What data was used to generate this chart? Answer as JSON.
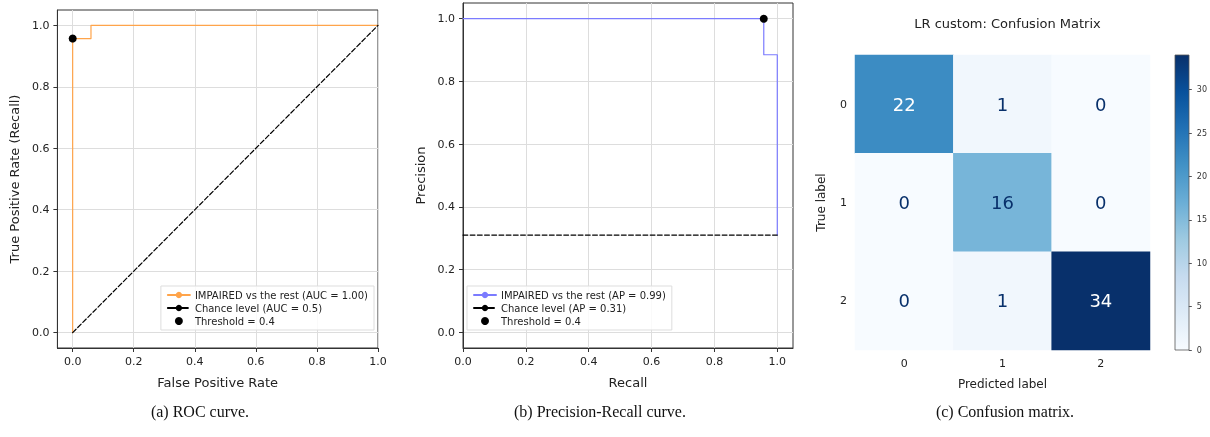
{
  "chart_data": [
    {
      "type": "line",
      "xlabel": "False Positive Rate",
      "ylabel": "True Positive Rate (Recall)",
      "annotations": [
        "(a) ROC curve."
      ],
      "xlim": [
        -0.05,
        1.0
      ],
      "ylim": [
        -0.05,
        1.05
      ],
      "xticks": [
        {
          "value": 0,
          "label": "0.0"
        },
        {
          "value": 0.2,
          "label": "0.2"
        },
        {
          "value": 0.4,
          "label": "0.4"
        },
        {
          "value": 0.6,
          "label": "0.6"
        },
        {
          "value": 0.8,
          "label": "0.8"
        },
        {
          "value": 1,
          "label": "1.0"
        }
      ],
      "yticks": [
        {
          "value": 0,
          "label": "0.0"
        },
        {
          "value": 0.2,
          "label": "0.2"
        },
        {
          "value": 0.4,
          "label": "0.4"
        },
        {
          "value": 0.6,
          "label": "0.6"
        },
        {
          "value": 0.8,
          "label": "0.8"
        },
        {
          "value": 1,
          "label": "1.0"
        }
      ],
      "grid": true,
      "legend": "bottom right",
      "marker": "none",
      "series": [
        {
          "name": "IMPAIRED vs the rest (AUC = 1.00)",
          "type": "line",
          "color": "#ffa44a",
          "line_style": "solid",
          "x": [
            0,
            0,
            0.06,
            0.06,
            1
          ],
          "values": [
            0,
            0.957,
            0.957,
            1,
            1
          ]
        },
        {
          "name": "Chance level (AUC = 0.5)",
          "type": "line",
          "color": "#000000",
          "line_style": "dashed",
          "x": [
            0,
            1
          ],
          "values": [
            0,
            1
          ]
        },
        {
          "name": "Threshold = 0.4",
          "type": "scatter",
          "marker": "circle",
          "color": "#000000",
          "x": [
            0
          ],
          "values": [
            0.957
          ]
        }
      ]
    },
    {
      "type": "line",
      "xlabel": "Recall",
      "ylabel": "Precision",
      "annotations": [
        "(b) Precision-Recall curve."
      ],
      "xlim": [
        0,
        1.05
      ],
      "ylim": [
        -0.05,
        1.05
      ],
      "xticks": [
        {
          "value": 0,
          "label": "0.0"
        },
        {
          "value": 0.2,
          "label": "0.2"
        },
        {
          "value": 0.4,
          "label": "0.4"
        },
        {
          "value": 0.6,
          "label": "0.6"
        },
        {
          "value": 0.8,
          "label": "0.8"
        },
        {
          "value": 1,
          "label": "1.0"
        }
      ],
      "yticks": [
        {
          "value": 0,
          "label": "0.0"
        },
        {
          "value": 0.2,
          "label": "0.2"
        },
        {
          "value": 0.4,
          "label": "0.4"
        },
        {
          "value": 0.6,
          "label": "0.6"
        },
        {
          "value": 0.8,
          "label": "0.8"
        },
        {
          "value": 1,
          "label": "1.0"
        }
      ],
      "grid": true,
      "legend": "bottom left",
      "marker": "none",
      "series": [
        {
          "name": "IMPAIRED vs the rest (AP = 0.99)",
          "type": "line",
          "color": "#7b7bff",
          "line_style": "solid",
          "x": [
            0,
            0.957,
            0.957,
            1,
            1
          ],
          "values": [
            1,
            1,
            0.885,
            0.885,
            0.31
          ]
        },
        {
          "name": "Chance level (AP = 0.31)",
          "type": "line",
          "color": "#000000",
          "line_style": "dashed",
          "x": [
            0,
            1
          ],
          "values": [
            0.31,
            0.31
          ]
        },
        {
          "name": "Threshold = 0.4",
          "type": "scatter",
          "marker": "circle",
          "color": "#000000",
          "x": [
            0.957
          ],
          "values": [
            1
          ]
        }
      ]
    },
    {
      "type": "heatmap",
      "title": "LR custom: Confusion Matrix",
      "xlabel": "Predicted label",
      "ylabel": "True label",
      "annotations": [
        "(c) Confusion matrix."
      ],
      "categories": [
        "0",
        "1",
        "2"
      ],
      "y_categories": [
        "0",
        "1",
        "2"
      ],
      "cells": [
        [
          22,
          1,
          0
        ],
        [
          0,
          16,
          0
        ],
        [
          0,
          1,
          34
        ]
      ],
      "data_labels": true,
      "clim": [
        0,
        34
      ],
      "cticks": [
        0,
        5,
        10,
        15,
        20,
        25,
        30
      ]
    }
  ]
}
